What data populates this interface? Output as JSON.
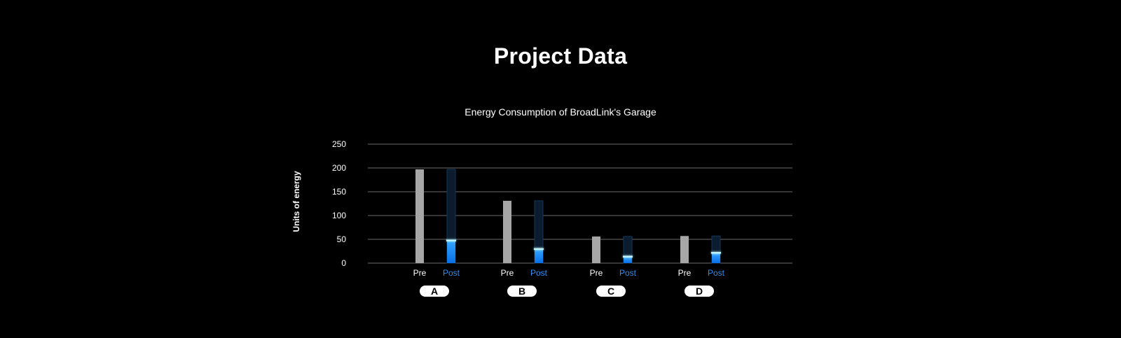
{
  "page": {
    "title": "Project Data"
  },
  "colors": {
    "background": "#000000",
    "pre_bar": "#a6a6a6",
    "post_bar": "#1a8cff",
    "post_track": "#0a1c2e",
    "post_label": "#2a8ff7",
    "grid": "#6b6b6b",
    "pill": "#ffffff"
  },
  "chart_data": {
    "type": "bar",
    "title": "Energy Consumption of BroadLink's Garage",
    "xlabel": "",
    "ylabel": "Units of energy",
    "ylim": [
      0,
      250
    ],
    "yticks": [
      0,
      50,
      100,
      150,
      200,
      250
    ],
    "grid": true,
    "categories": [
      "A",
      "B",
      "C",
      "D"
    ],
    "sub_labels": [
      "Pre",
      "Post"
    ],
    "series": [
      {
        "name": "Pre",
        "values": [
          197,
          131,
          56,
          57
        ]
      },
      {
        "name": "Post",
        "values": [
          48,
          30,
          14,
          22
        ]
      }
    ]
  }
}
